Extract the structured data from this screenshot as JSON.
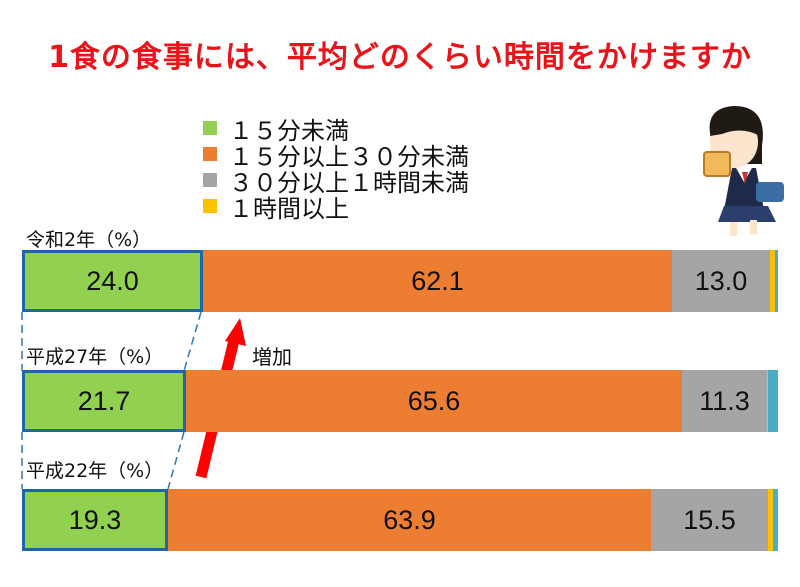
{
  "title": "1食の食事には、平均どのくらい時間をかけますか",
  "chart_data": {
    "type": "bar",
    "orientation": "horizontal-stacked",
    "categories": [
      "令和2年（%）",
      "平成27年（%）",
      "平成22年（%）"
    ],
    "series": [
      {
        "name": "１５分未満",
        "color": "#92d050",
        "values": [
          24.0,
          21.7,
          19.3
        ]
      },
      {
        "name": "１５分以上３０分未満",
        "color": "#ed7d31",
        "values": [
          62.1,
          65.6,
          63.9
        ]
      },
      {
        "name": "３０分以上１時間未満",
        "color": "#a5a5a5",
        "values": [
          13.0,
          11.3,
          15.5
        ]
      },
      {
        "name": "１時間以上",
        "color": "#ffc000",
        "values": [
          0.6,
          0.1,
          0.6
        ]
      },
      {
        "name": "",
        "color": "#4aacc6",
        "values": [
          0.3,
          1.3,
          0.7
        ]
      }
    ],
    "data_labels": [
      [
        "24.0",
        "62.1",
        "13.0"
      ],
      [
        "21.7",
        "65.6",
        "11.3"
      ],
      [
        "19.3",
        "63.9",
        "15.5"
      ]
    ],
    "legend_position": "top-left"
  },
  "annotation": "増加"
}
